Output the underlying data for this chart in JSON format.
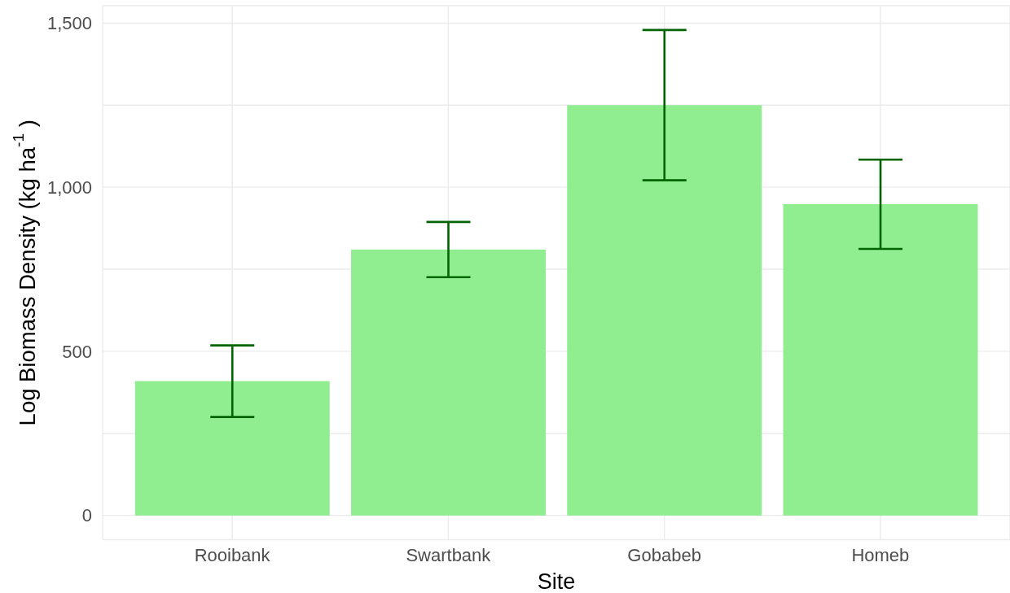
{
  "chart_data": {
    "type": "bar",
    "categories": [
      "Rooibank",
      "Swartbank",
      "Gobabeb",
      "Homeb"
    ],
    "series": [
      {
        "color": "#90ee90",
        "values": [
          409,
          810,
          1250,
          948
        ],
        "errors": [
          109,
          84,
          229,
          136
        ]
      }
    ],
    "xlabel": "Site",
    "ylabel": "Log Biomass Density (kg ha$^{-1}$ )",
    "ylim": [
      -74,
      1553
    ],
    "yticks": [
      0,
      {
        "value": 250,
        "label": null
      },
      500,
      {
        "value": 750,
        "label": null
      },
      {
        "value": 1000,
        "label": "1,000"
      },
      {
        "value": 1250,
        "label": null
      },
      {
        "value": 1500,
        "label": "1,500"
      }
    ],
    "grid": true
  }
}
